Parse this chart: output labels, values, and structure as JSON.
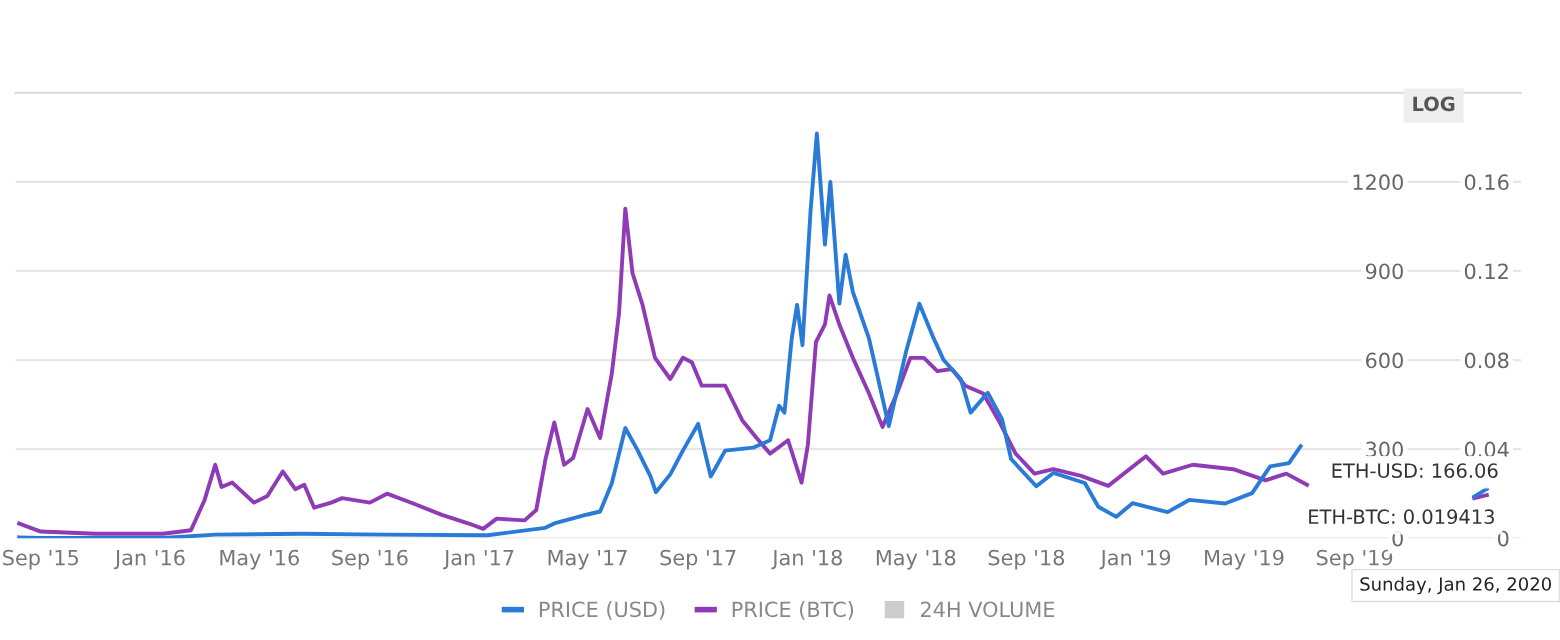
{
  "chart_data": {
    "type": "line",
    "xlim": [
      "2015-08-04",
      "2020-03-04"
    ],
    "xticks": [
      {
        "value": "2015-09-01",
        "label": "Sep '15"
      },
      {
        "value": "2016-01-01",
        "label": "Jan '16"
      },
      {
        "value": "2016-05-01",
        "label": "May '16"
      },
      {
        "value": "2016-09-01",
        "label": "Sep '16"
      },
      {
        "value": "2017-01-01",
        "label": "Jan '17"
      },
      {
        "value": "2017-05-01",
        "label": "May '17"
      },
      {
        "value": "2017-09-01",
        "label": "Sep '17"
      },
      {
        "value": "2018-01-01",
        "label": "Jan '18"
      },
      {
        "value": "2018-05-01",
        "label": "May '18"
      },
      {
        "value": "2018-09-01",
        "label": "Sep '18"
      },
      {
        "value": "2019-01-01",
        "label": "Jan '19"
      },
      {
        "value": "2019-05-01",
        "label": "May '19"
      },
      {
        "value": "2019-09-01",
        "label": "Sep '19"
      }
    ],
    "ylim": [
      0,
      1500
    ],
    "yticks": [
      0,
      300,
      600,
      900,
      1200
    ],
    "y2lim": [
      0,
      0.2
    ],
    "y2ticks": [
      0,
      0.04,
      0.08,
      0.12,
      0.16
    ],
    "grid": "y",
    "legend": "bottom",
    "series": [
      {
        "name": "PRICE (USD)",
        "color": "#2a7bd8",
        "x": [
          "2015-08-08",
          "2015-09-01",
          "2015-11-01",
          "2016-01-15",
          "2016-03-13",
          "2016-06-17",
          "2016-09-15",
          "2017-01-10",
          "2017-03-15",
          "2017-03-25",
          "2017-05-01",
          "2017-05-15",
          "2017-05-28",
          "2017-06-12",
          "2017-06-25",
          "2017-07-10",
          "2017-07-16",
          "2017-08-01",
          "2017-08-15",
          "2017-09-01",
          "2017-09-15",
          "2017-10-01",
          "2017-11-01",
          "2017-11-20",
          "2017-11-30",
          "2017-12-06",
          "2017-12-14",
          "2017-12-20",
          "2017-12-26",
          "2018-01-04",
          "2018-01-11",
          "2018-01-20",
          "2018-01-26",
          "2018-02-05",
          "2018-02-12",
          "2018-02-20",
          "2018-03-10",
          "2018-04-01",
          "2018-04-20",
          "2018-05-05",
          "2018-05-20",
          "2018-06-01",
          "2018-06-20",
          "2018-07-01",
          "2018-07-20",
          "2018-08-05",
          "2018-08-15",
          "2018-09-12",
          "2018-10-01",
          "2018-11-05",
          "2018-11-20",
          "2018-12-10",
          "2018-12-28",
          "2019-02-05",
          "2019-03-01",
          "2019-04-10",
          "2019-05-10",
          "2019-05-30",
          "2019-06-20",
          "2019-07-03",
          "2019-10-01",
          "2020-01-12",
          "2020-01-26"
        ],
        "values": [
          3,
          1,
          1,
          1,
          12,
          15,
          12,
          10,
          35,
          50,
          80,
          90,
          185,
          371,
          300,
          208,
          155,
          215,
          295,
          385,
          208,
          295,
          305,
          330,
          446,
          423,
          672,
          786,
          650,
          1102,
          1363,
          989,
          1200,
          790,
          955,
          830,
          672,
          378,
          626,
          790,
          679,
          600,
          536,
          423,
          490,
          400,
          267,
          175,
          220,
          186,
          106,
          72,
          118,
          88,
          129,
          117,
          152,
          242,
          253,
          310,
          null,
          140,
          166.06
        ]
      },
      {
        "name": "PRICE (BTC)",
        "color": "#8e3bb5",
        "axis": "y2",
        "x": [
          "2015-08-08",
          "2015-09-01",
          "2015-11-01",
          "2016-01-15",
          "2016-02-15",
          "2016-03-01",
          "2016-03-13",
          "2016-03-20",
          "2016-04-01",
          "2016-04-25",
          "2016-05-10",
          "2016-05-27",
          "2016-06-10",
          "2016-06-20",
          "2016-07-01",
          "2016-07-20",
          "2016-08-01",
          "2016-09-01",
          "2016-09-20",
          "2016-10-20",
          "2016-11-20",
          "2016-12-20",
          "2017-01-05",
          "2017-01-20",
          "2017-02-20",
          "2017-03-05",
          "2017-03-15",
          "2017-03-25",
          "2017-04-05",
          "2017-04-15",
          "2017-05-01",
          "2017-05-15",
          "2017-05-28",
          "2017-06-05",
          "2017-06-12",
          "2017-06-20",
          "2017-07-01",
          "2017-07-15",
          "2017-08-01",
          "2017-08-15",
          "2017-08-25",
          "2017-09-05",
          "2017-10-01",
          "2017-10-20",
          "2017-11-05",
          "2017-11-20",
          "2017-12-10",
          "2017-12-25",
          "2018-01-01",
          "2018-01-10",
          "2018-01-20",
          "2018-01-25",
          "2018-02-05",
          "2018-02-20",
          "2018-03-10",
          "2018-03-25",
          "2018-04-10",
          "2018-04-25",
          "2018-05-10",
          "2018-05-25",
          "2018-06-10",
          "2018-06-25",
          "2018-07-15",
          "2018-08-01",
          "2018-08-20",
          "2018-09-10",
          "2018-10-01",
          "2018-11-01",
          "2018-12-01",
          "2019-01-12",
          "2019-01-31",
          "2019-03-05",
          "2019-04-19",
          "2019-05-25",
          "2019-06-17",
          "2019-07-10",
          "2019-10-01",
          "2020-01-12",
          "2020-01-26"
        ],
        "values": [
          0.0066,
          0.003,
          0.002,
          0.002,
          0.0036,
          0.017,
          0.033,
          0.023,
          0.025,
          0.016,
          0.019,
          0.03,
          0.022,
          0.024,
          0.0137,
          0.016,
          0.018,
          0.016,
          0.02,
          0.0155,
          0.0105,
          0.0066,
          0.0042,
          0.0088,
          0.008,
          0.0127,
          0.035,
          0.052,
          0.033,
          0.036,
          0.058,
          0.045,
          0.074,
          0.101,
          0.148,
          0.119,
          0.105,
          0.081,
          0.0715,
          0.081,
          0.079,
          0.0685,
          0.0685,
          0.053,
          0.045,
          0.038,
          0.044,
          0.025,
          0.042,
          0.088,
          0.096,
          0.109,
          0.096,
          0.081,
          0.065,
          0.05,
          0.065,
          0.081,
          0.081,
          0.075,
          0.076,
          0.0685,
          0.065,
          0.053,
          0.038,
          0.029,
          0.031,
          0.028,
          0.0235,
          0.0368,
          0.029,
          0.033,
          0.031,
          0.026,
          0.029,
          0.024,
          null,
          0.018,
          0.019413
        ]
      }
    ],
    "annotations": [
      "24H VOLUME",
      "LOG",
      "ETH-USD: 166.06",
      "ETH-BTC: 0.019413",
      "Sunday, Jan 26, 2020"
    ]
  }
}
